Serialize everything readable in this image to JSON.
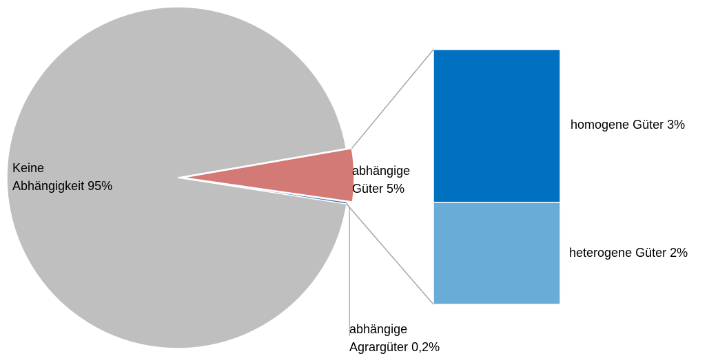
{
  "chart_data": {
    "type": "bar-of-pie",
    "categories": [
      "Keine Abhängigkeit",
      "abhängige Güter",
      "abhängige Agrargüter"
    ],
    "values": [
      95,
      5,
      0.2
    ],
    "value_labels": [
      "95%",
      "5%",
      "0,2%"
    ],
    "colors": [
      "#bfbfbf",
      "#d47a76",
      "#2f6fb0"
    ],
    "bar": {
      "categories": [
        "homogene Güter",
        "heterogene Güter"
      ],
      "values": [
        3,
        2
      ],
      "value_labels": [
        "3%",
        "2%"
      ],
      "colors": [
        "#0070c0",
        "#69acd8"
      ]
    }
  }
}
